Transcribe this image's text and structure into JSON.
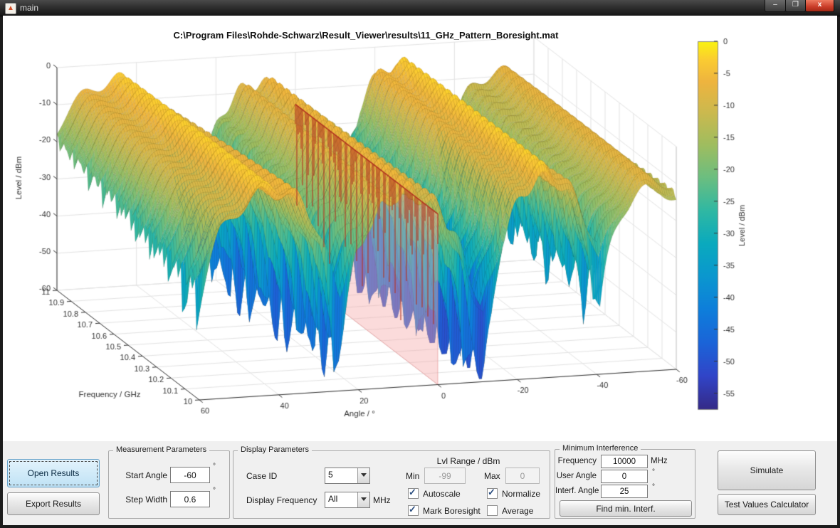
{
  "window": {
    "title": "main",
    "buttons": {
      "minimize": "–",
      "maximize": "❐",
      "close": "x"
    }
  },
  "figure": {
    "title": "C:\\Program Files\\Rohde-Schwarz\\Result_Viewer\\results\\11_GHz_Pattern_Boresight.mat"
  },
  "chart_data": {
    "type": "surface",
    "title": "C:\\Program Files\\Rohde-Schwarz\\Result_Viewer\\results\\11_GHz_Pattern_Boresight.mat",
    "x_axis": {
      "label": "Angle / °",
      "ticks": [
        60,
        40,
        20,
        0,
        -20,
        -40,
        -60
      ],
      "range": [
        60,
        -60
      ]
    },
    "y_axis": {
      "label": "Frequency / GHz",
      "ticks": [
        11,
        10.9,
        10.8,
        10.7,
        10.6,
        10.5,
        10.4,
        10.3,
        10.2,
        10.1,
        10
      ],
      "range": [
        11,
        10
      ]
    },
    "z_axis": {
      "label": "Level / dBm",
      "ticks": [
        0,
        -10,
        -20,
        -30,
        -40,
        -50,
        -60
      ],
      "range": [
        0,
        -60
      ]
    },
    "colorbar": {
      "label": "Level / dBm",
      "ticks": [
        0,
        -5,
        -10,
        -15,
        -20,
        -25,
        -30,
        -35,
        -40,
        -45,
        -50,
        -55
      ],
      "range": [
        0,
        -57.5
      ],
      "colormap": "parula",
      "stops": [
        {
          "t": 0.0,
          "c": "#352a87"
        },
        {
          "t": 0.09,
          "c": "#3145c8"
        },
        {
          "t": 0.18,
          "c": "#1b64d8"
        },
        {
          "t": 0.27,
          "c": "#0e7edb"
        },
        {
          "t": 0.36,
          "c": "#0b97cf"
        },
        {
          "t": 0.45,
          "c": "#0aaabe"
        },
        {
          "t": 0.54,
          "c": "#30b8a3"
        },
        {
          "t": 0.63,
          "c": "#6cbe80"
        },
        {
          "t": 0.72,
          "c": "#a0bd5f"
        },
        {
          "t": 0.81,
          "c": "#cdb94e"
        },
        {
          "t": 0.89,
          "c": "#eeb43f"
        },
        {
          "t": 0.95,
          "c": "#fbcc32"
        },
        {
          "t": 1.0,
          "c": "#f9f410"
        }
      ]
    },
    "boresight": {
      "angle_deg": 0,
      "plane_top_db": -14,
      "plane_fill": "rgba(246,170,170,0.42)",
      "plane_edge": "rgba(225,120,120,0.5)",
      "line_color": "#b23420"
    },
    "surface_model": {
      "description": "Measured antenna far-field pattern: Level/dBm over Angle -60..60 deg (step 0.6) and Frequency 10..11 GHz; main lobes near +45, +8, -26 and -53 deg with deep nulls between, boresight cut marked at 0 deg",
      "angle_step_deg": 0.6,
      "freq_step_ghz": 0.01,
      "lobes": [
        {
          "c": 0.7,
          "p": -2,
          "w": 0.12,
          "d": 0.05
        },
        {
          "c": 0.146,
          "p": -8,
          "w": 0.15,
          "d": 0.03
        },
        {
          "c": -0.439,
          "p": -4,
          "w": 0.11,
          "d": 0.04
        },
        {
          "c": -0.8,
          "p": -5,
          "w": 0.1,
          "d": 0.05
        }
      ],
      "taper_db": -6,
      "ripple_f": {
        "amp": 1.3,
        "period": 0.05
      },
      "ripple_a": {
        "amp": 2.0,
        "k": 55
      },
      "teeth": {
        "period": 0.033,
        "depth": 26,
        "start": -15,
        "scale": 10,
        "max": 1.5
      }
    }
  },
  "controls": {
    "open_results": "Open Results",
    "export_results": "Export Results",
    "simulate": "Simulate",
    "test_values": "Test Values Calculator",
    "measurement": {
      "title": "Measurement Parameters",
      "rows": [
        {
          "label": "Start Angle",
          "value": "-60",
          "unit": "°"
        },
        {
          "label": "Step Width",
          "value": "0.6",
          "unit": "°"
        }
      ]
    },
    "display": {
      "title": "Display Parameters",
      "case_id": {
        "label": "Case ID",
        "value": "5"
      },
      "display_frequency": {
        "label": "Display Frequency",
        "value": "All",
        "unit": "MHz"
      },
      "lvl_range": {
        "title": "Lvl Range / dBm",
        "min_label": "Min",
        "min_value": "-99",
        "max_label": "Max",
        "max_value": "0"
      },
      "checkboxes": [
        {
          "label": "Autoscale",
          "checked": true
        },
        {
          "label": "Normalize",
          "checked": true
        },
        {
          "label": "Mark Boresight",
          "checked": true
        },
        {
          "label": "Average",
          "checked": false
        }
      ]
    },
    "min_interference": {
      "title": "Minimum Interference",
      "rows": [
        {
          "label": "Frequency",
          "value": "10000",
          "unit": "MHz"
        },
        {
          "label": "User Angle",
          "value": "0",
          "unit": "°"
        },
        {
          "label": "Interf. Angle",
          "value": "25",
          "unit": "°"
        }
      ],
      "button": "Find min. Interf."
    }
  }
}
